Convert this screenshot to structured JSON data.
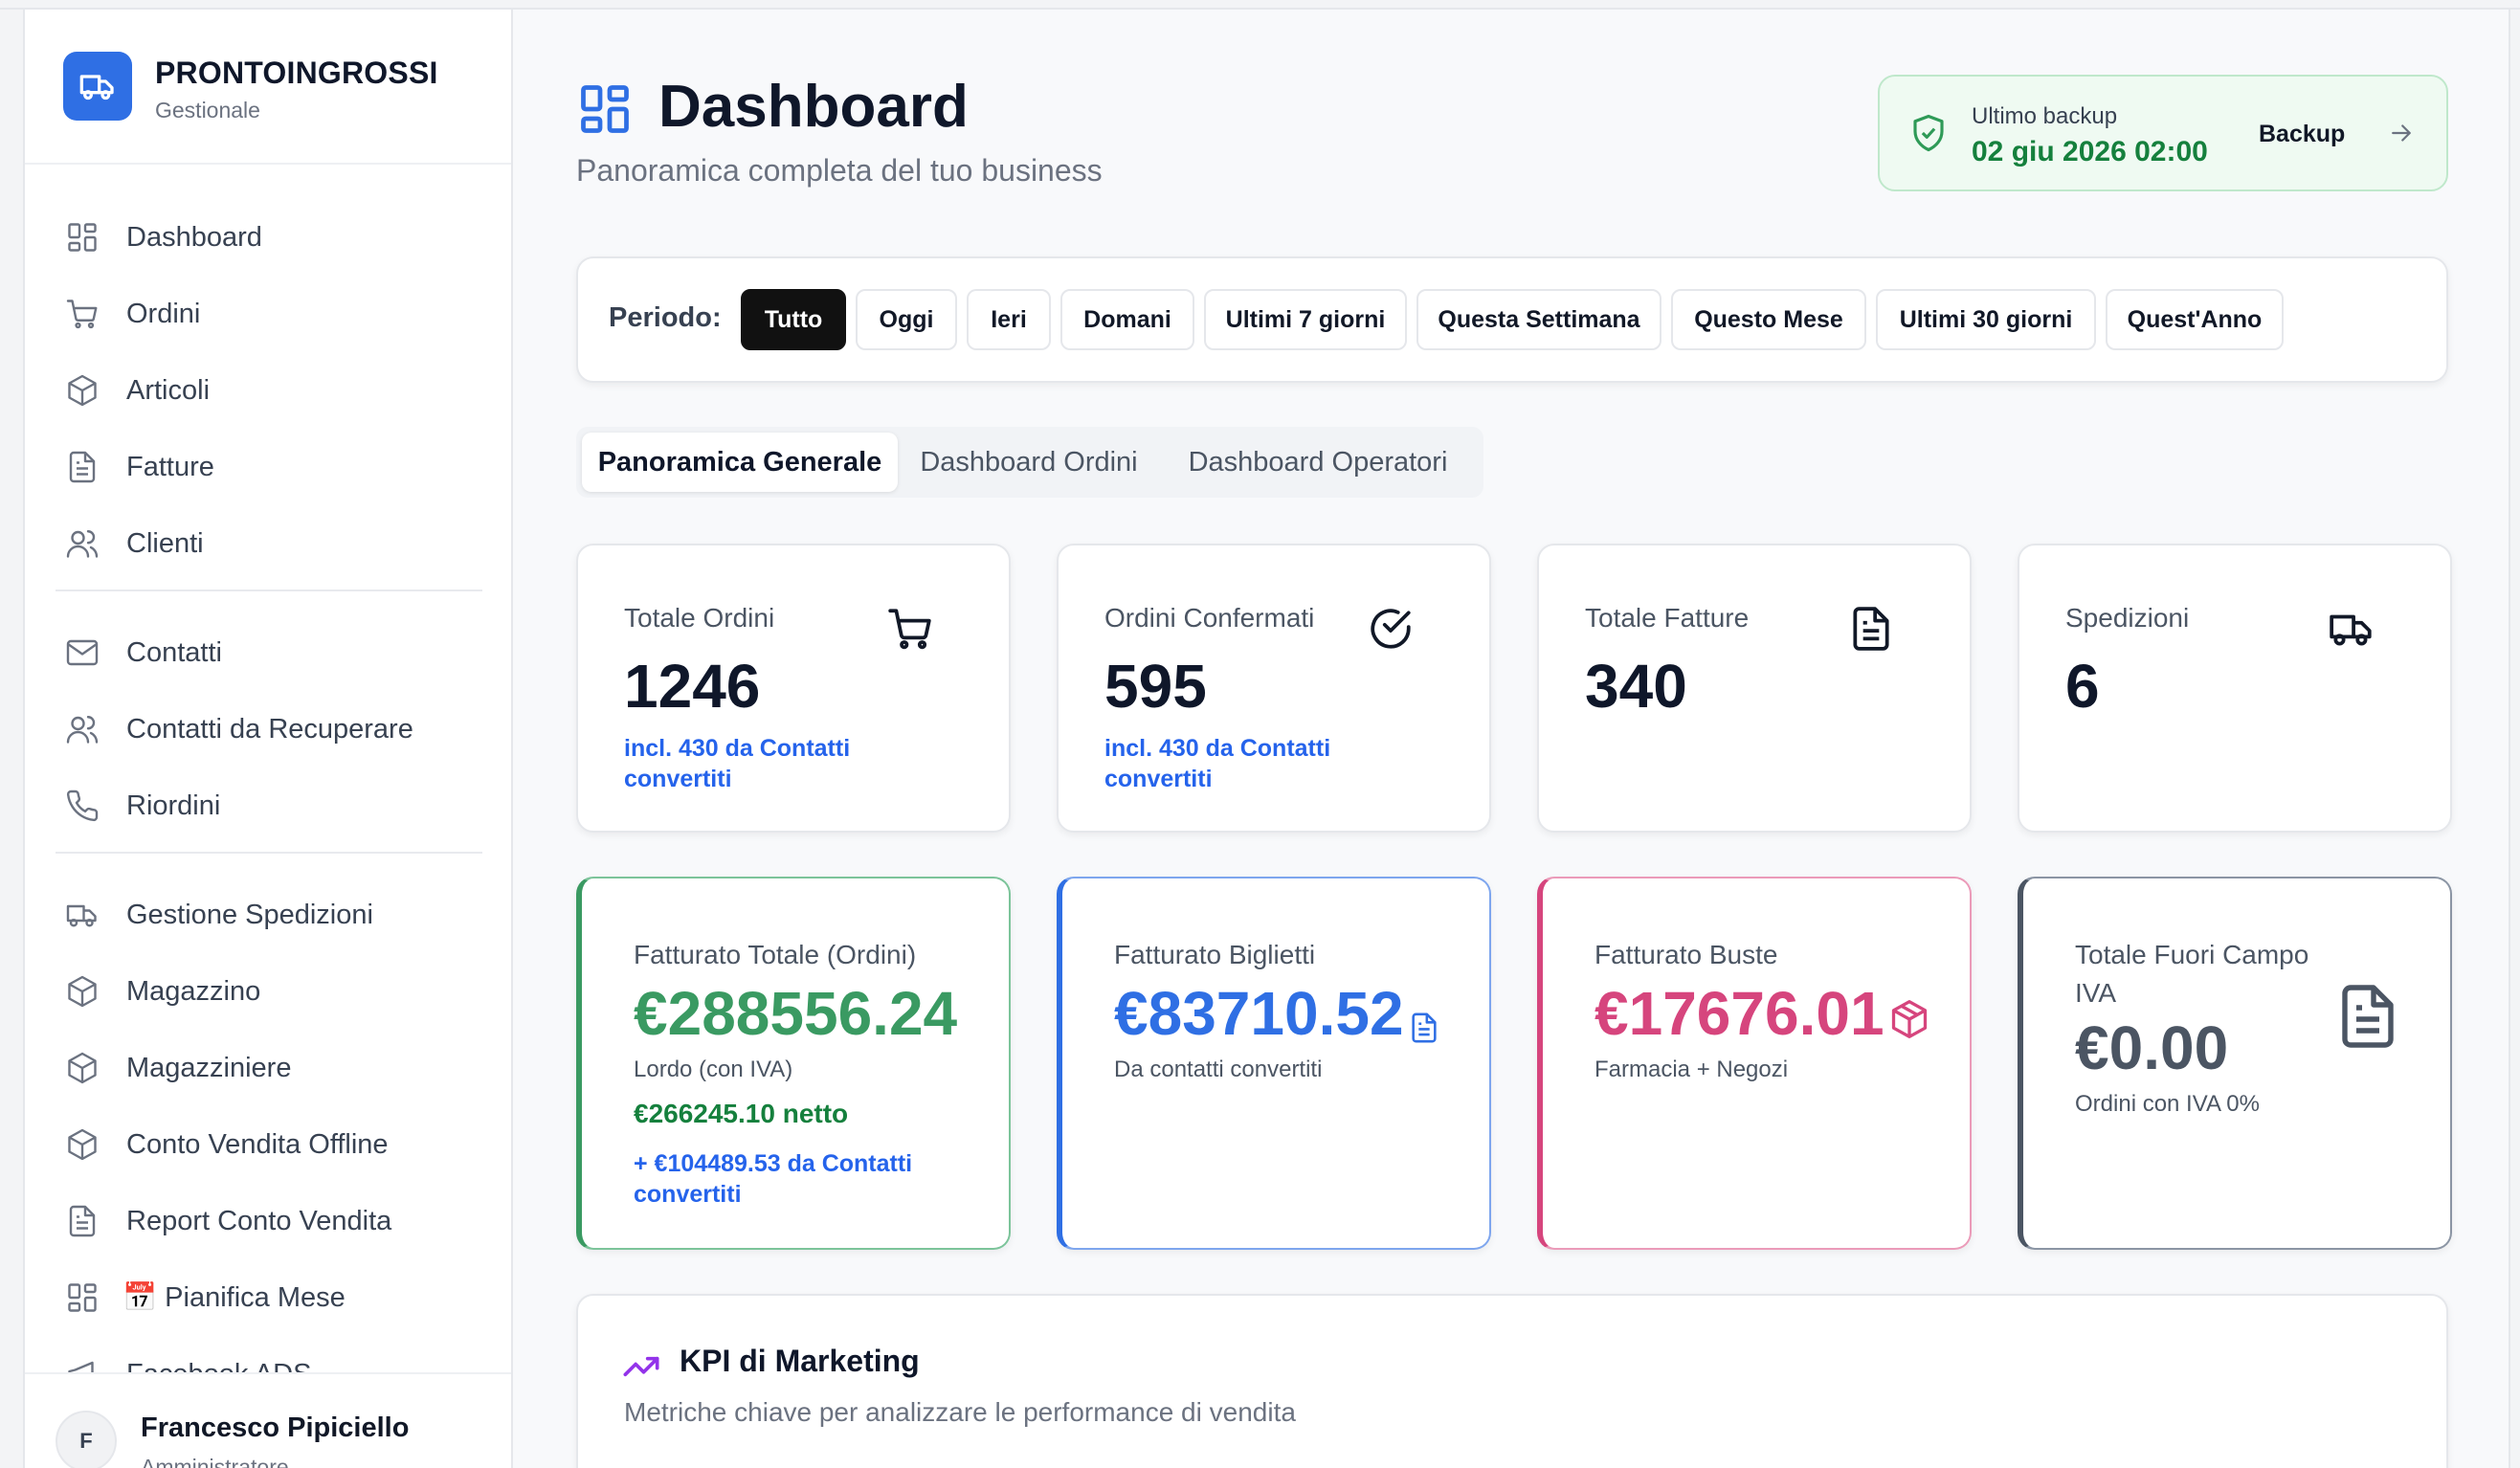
{
  "brand": {
    "name": "PRONTOINGROSSI",
    "subtitle": "Gestionale"
  },
  "sidebar": {
    "items": [
      {
        "label": "Dashboard",
        "icon": "grid-icon"
      },
      {
        "label": "Ordini",
        "icon": "cart-icon"
      },
      {
        "label": "Articoli",
        "icon": "box-icon"
      },
      {
        "label": "Fatture",
        "icon": "document-icon"
      },
      {
        "label": "Clienti",
        "icon": "users-icon"
      },
      {
        "label": "Contatti",
        "icon": "mail-icon"
      },
      {
        "label": "Contatti da Recuperare",
        "icon": "users-icon"
      },
      {
        "label": "Riordini",
        "icon": "phone-icon"
      },
      {
        "label": "Gestione Spedizioni",
        "icon": "truck-icon"
      },
      {
        "label": "Magazzino",
        "icon": "box-icon"
      },
      {
        "label": "Magazziniere",
        "icon": "box-icon"
      },
      {
        "label": "Conto Vendita Offline",
        "icon": "box-icon"
      },
      {
        "label": "Report Conto Vendita",
        "icon": "document-icon"
      },
      {
        "label": "📅 Pianifica Mese",
        "icon": "grid-icon"
      },
      {
        "label": "Facebook ADS",
        "icon": "megaphone-icon"
      }
    ]
  },
  "user": {
    "initial": "F",
    "name": "Francesco Pipiciello",
    "role": "Amministratore"
  },
  "header": {
    "title": "Dashboard",
    "subtitle": "Panoramica completa del tuo business"
  },
  "backup": {
    "label": "Ultimo backup",
    "date": "02 giu 2026 02:00",
    "button": "Backup"
  },
  "period": {
    "label": "Periodo:",
    "options": [
      "Tutto",
      "Oggi",
      "Ieri",
      "Domani",
      "Ultimi 7 giorni",
      "Questa Settimana",
      "Questo Mese",
      "Ultimi 30 giorni",
      "Quest'Anno"
    ],
    "selected": "Tutto"
  },
  "tabs": [
    "Panoramica Generale",
    "Dashboard Ordini",
    "Dashboard Operatori"
  ],
  "stats": [
    {
      "label": "Totale Ordini",
      "value": "1246",
      "note": "incl. 430 da Contatti convertiti",
      "icon": "cart-icon"
    },
    {
      "label": "Ordini Confermati",
      "value": "595",
      "note": "incl. 430 da Contatti convertiti",
      "icon": "check-circle-icon"
    },
    {
      "label": "Totale Fatture",
      "value": "340",
      "note": "",
      "icon": "document-icon"
    },
    {
      "label": "Spedizioni",
      "value": "6",
      "note": "",
      "icon": "truck-icon"
    }
  ],
  "revenue": [
    {
      "label": "Fatturato Totale (Ordini)",
      "value": "€288556.24",
      "sub": "Lordo (con IVA)",
      "net": "€266245.10 netto",
      "extra": "+ €104489.53 da Contatti convertiti",
      "color": "#3a9a62"
    },
    {
      "label": "Fatturato Biglietti",
      "value": "€83710.52",
      "sub": "Da contatti convertiti",
      "color": "#2f6fe4",
      "icon": "document-icon"
    },
    {
      "label": "Fatturato Buste",
      "value": "€17676.01",
      "sub": "Farmacia + Negozi",
      "color": "#d6457d",
      "icon": "box-icon"
    },
    {
      "label": "Totale Fuori Campo IVA",
      "value": "€0.00",
      "sub": "Ordini con IVA 0%",
      "color": "#4b5563",
      "icon": "document-icon"
    }
  ],
  "kpi": {
    "title": "KPI di Marketing",
    "subtitle": "Metriche chiave per analizzare le performance di vendita"
  }
}
